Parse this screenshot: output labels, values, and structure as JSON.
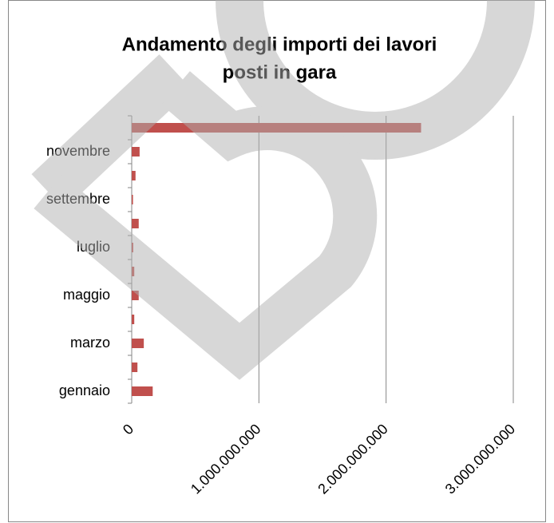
{
  "chart_data": {
    "type": "bar",
    "orientation": "horizontal",
    "title": [
      "Andamento degli importi dei lavori",
      "posti in gara"
    ],
    "categories": [
      "gennaio",
      null,
      "marzo",
      null,
      "maggio",
      null,
      "luglio",
      null,
      "settembre",
      null,
      "novembre",
      null
    ],
    "values": [
      165000000,
      45000000,
      95000000,
      20000000,
      55000000,
      20000000,
      12000000,
      55000000,
      10000000,
      30000000,
      62000000,
      2275000000
    ],
    "color": "#c0504d",
    "xlim": [
      0,
      3000000000
    ],
    "xticks": [
      0,
      {
        "value": 1000000000,
        "label": "1.000.000.000"
      },
      {
        "value": 2000000000,
        "label": "2.000.000.000"
      },
      {
        "value": 3000000000,
        "label": "3.000.000.000"
      }
    ],
    "grid": true
  }
}
